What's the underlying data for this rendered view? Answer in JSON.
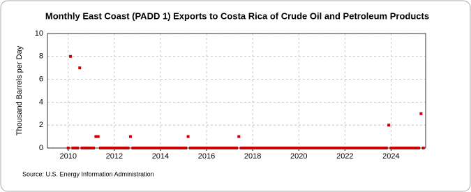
{
  "chart_data": {
    "type": "scatter",
    "title": "Monthly East Coast (PADD 1) Exports to Costa Rica of Crude Oil and Petroleum Products",
    "y_label": "Thousand Barrels per Day",
    "source": "Source: U.S. Energy Information Administration",
    "color": "#cc0000",
    "grid": true,
    "xlim": [
      2009.1,
      2025.5
    ],
    "xticks": [
      2010,
      2012,
      2014,
      2016,
      2018,
      2020,
      2022,
      2024
    ],
    "ylim": [
      0,
      10
    ],
    "yticks": [
      0,
      2,
      4,
      6,
      8,
      10
    ],
    "x": [
      2010.0,
      2010.1,
      2010.2,
      2010.3,
      2010.4,
      2010.5,
      2010.6,
      2010.7,
      2010.8,
      2010.9,
      2011.0,
      2011.1,
      2011.2,
      2011.3,
      2011.4,
      2011.5,
      2011.6,
      2011.7,
      2011.8,
      2011.9,
      2012.0,
      2012.1,
      2012.2,
      2012.3,
      2012.4,
      2012.5,
      2012.6,
      2012.7,
      2012.8,
      2012.9,
      2013.0,
      2013.1,
      2013.2,
      2013.3,
      2013.4,
      2013.5,
      2013.6,
      2013.7,
      2013.8,
      2013.9,
      2014.0,
      2014.1,
      2014.2,
      2014.3,
      2014.4,
      2014.5,
      2014.6,
      2014.7,
      2014.8,
      2014.9,
      2015.0,
      2015.1,
      2015.2,
      2015.3,
      2015.4,
      2015.5,
      2015.6,
      2015.7,
      2015.8,
      2015.9,
      2016.0,
      2016.1,
      2016.2,
      2016.3,
      2016.4,
      2016.5,
      2016.6,
      2016.7,
      2016.8,
      2016.9,
      2017.0,
      2017.1,
      2017.2,
      2017.3,
      2017.4,
      2017.5,
      2017.6,
      2017.7,
      2017.8,
      2017.9,
      2018.0,
      2018.1,
      2018.2,
      2018.3,
      2018.4,
      2018.5,
      2018.6,
      2018.7,
      2018.8,
      2018.9,
      2019.0,
      2019.1,
      2019.2,
      2019.3,
      2019.4,
      2019.5,
      2019.6,
      2019.7,
      2019.8,
      2019.9,
      2020.0,
      2020.1,
      2020.2,
      2020.3,
      2020.4,
      2020.5,
      2020.6,
      2020.7,
      2020.8,
      2020.9,
      2021.0,
      2021.1,
      2021.2,
      2021.3,
      2021.4,
      2021.5,
      2021.6,
      2021.7,
      2021.8,
      2021.9,
      2022.0,
      2022.1,
      2022.2,
      2022.3,
      2022.4,
      2022.5,
      2022.6,
      2022.7,
      2022.8,
      2022.9,
      2023.0,
      2023.1,
      2023.2,
      2023.3,
      2023.4,
      2023.5,
      2023.6,
      2023.7,
      2023.8,
      2023.9,
      2024.0,
      2024.1,
      2024.2,
      2024.3,
      2024.4,
      2024.5,
      2024.6,
      2024.7,
      2024.8,
      2024.9,
      2025.0,
      2025.1,
      2025.2,
      2025.3,
      2025.4
    ],
    "values": [
      0,
      8,
      0,
      0,
      0,
      7,
      0,
      0,
      0,
      0,
      0,
      0,
      1,
      1,
      0,
      0,
      0,
      0,
      0,
      0,
      0,
      0,
      0,
      0,
      0,
      0,
      0,
      1,
      0,
      0,
      0,
      0,
      0,
      0,
      0,
      0,
      0,
      0,
      0,
      0,
      0,
      0,
      0,
      0,
      0,
      0,
      0,
      0,
      0,
      0,
      0,
      0,
      1,
      0,
      0,
      0,
      0,
      0,
      0,
      0,
      0,
      0,
      0,
      0,
      0,
      0,
      0,
      0,
      0,
      0,
      0,
      0,
      0,
      0,
      1,
      0,
      0,
      0,
      0,
      0,
      0,
      0,
      0,
      0,
      0,
      0,
      0,
      0,
      0,
      0,
      0,
      0,
      0,
      0,
      0,
      0,
      0,
      0,
      0,
      0,
      0,
      0,
      0,
      0,
      0,
      0,
      0,
      0,
      0,
      0,
      0,
      0,
      0,
      0,
      0,
      0,
      0,
      0,
      0,
      0,
      0,
      0,
      0,
      0,
      0,
      0,
      0,
      0,
      0,
      0,
      0,
      0,
      0,
      0,
      0,
      0,
      0,
      0,
      0,
      2,
      0,
      0,
      0,
      0,
      0,
      0,
      0,
      0,
      0,
      0,
      0,
      0,
      0,
      3,
      0
    ]
  }
}
